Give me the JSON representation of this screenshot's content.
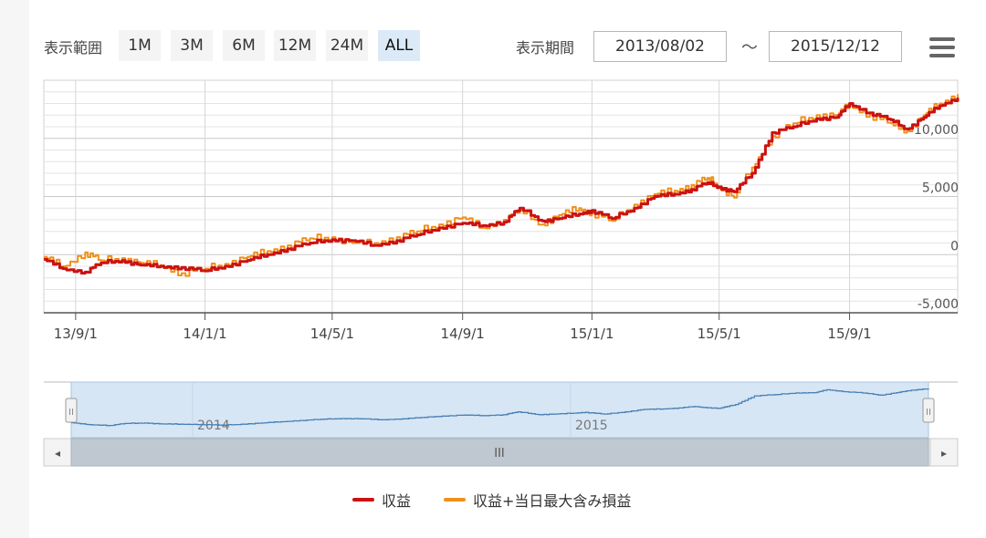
{
  "toolbar": {
    "range_label": "表示範囲",
    "range_buttons": [
      "1M",
      "3M",
      "6M",
      "12M",
      "24M",
      "ALL"
    ],
    "active_range": "ALL",
    "period_label": "表示期間",
    "start_date": "2013/08/02",
    "tilde": "～",
    "end_date": "2015/12/12",
    "menu_icon": "hamburger-menu-icon"
  },
  "navigator": {
    "year_labels": [
      "2014",
      "2015"
    ],
    "scroll_grip": "III",
    "left_arrow": "◂",
    "right_arrow": "▸",
    "handle_grip": "II"
  },
  "legend": {
    "items": [
      {
        "label": "収益",
        "color": "#cc1111"
      },
      {
        "label": "収益+当日最大含み損益",
        "color": "#f0901a"
      }
    ]
  },
  "colors": {
    "profit_line": "#cc1111",
    "max_line": "#f0901a",
    "navigator_fill": "#d6e6f5",
    "navigator_line": "#4a80b4"
  },
  "chart_data": {
    "type": "line",
    "x_tick_labels": [
      "13/9/1",
      "14/1/1",
      "14/5/1",
      "14/9/1",
      "15/1/1",
      "15/5/1",
      "15/9/1"
    ],
    "x_tick_dates": [
      "2013-09-01",
      "2014-01-01",
      "2014-05-01",
      "2014-09-01",
      "2015-01-01",
      "2015-05-01",
      "2015-09-01"
    ],
    "x_range": [
      "2013-08-02",
      "2015-12-12"
    ],
    "y_tick_labels": [
      "-5,000",
      "0",
      "5,000",
      "10,000"
    ],
    "y_ticks": [
      -5000,
      0,
      5000,
      10000
    ],
    "ylim": [
      -5000,
      15000
    ],
    "grid": true,
    "legend_position": "bottom-center",
    "series": [
      {
        "name": "収益",
        "x": [
          "2013-08-02",
          "2013-08-20",
          "2013-09-10",
          "2013-09-25",
          "2013-10-15",
          "2013-11-01",
          "2013-11-20",
          "2013-12-10",
          "2014-01-01",
          "2014-01-20",
          "2014-02-10",
          "2014-03-01",
          "2014-03-20",
          "2014-04-10",
          "2014-05-01",
          "2014-05-20",
          "2014-06-10",
          "2014-07-01",
          "2014-07-20",
          "2014-08-10",
          "2014-09-01",
          "2014-09-20",
          "2014-10-10",
          "2014-10-25",
          "2014-11-15",
          "2014-12-01",
          "2014-12-20",
          "2015-01-01",
          "2015-01-20",
          "2015-02-10",
          "2015-03-01",
          "2015-03-20",
          "2015-04-05",
          "2015-04-20",
          "2015-05-01",
          "2015-05-15",
          "2015-06-01",
          "2015-06-20",
          "2015-07-10",
          "2015-08-01",
          "2015-08-20",
          "2015-09-01",
          "2015-09-20",
          "2015-10-10",
          "2015-10-25",
          "2015-11-10",
          "2015-11-25",
          "2015-12-12"
        ],
        "values": [
          -400,
          -1200,
          -1500,
          -700,
          -500,
          -900,
          -1000,
          -1100,
          -1400,
          -1000,
          -500,
          0,
          500,
          1000,
          1300,
          1200,
          800,
          1200,
          1700,
          2300,
          2700,
          2500,
          2800,
          4000,
          2900,
          3100,
          3500,
          3800,
          3100,
          4000,
          5000,
          5200,
          5600,
          6200,
          5800,
          5400,
          7000,
          10500,
          11000,
          11700,
          11800,
          13000,
          12200,
          11600,
          10800,
          11800,
          12800,
          13500
        ]
      },
      {
        "name": "収益+当日最大含み損益",
        "x": [
          "2013-08-02",
          "2013-08-20",
          "2013-09-10",
          "2013-09-25",
          "2013-10-15",
          "2013-11-01",
          "2013-11-20",
          "2013-12-10",
          "2014-01-01",
          "2014-01-20",
          "2014-02-10",
          "2014-03-01",
          "2014-03-20",
          "2014-04-10",
          "2014-05-01",
          "2014-05-20",
          "2014-06-10",
          "2014-07-01",
          "2014-07-20",
          "2014-08-10",
          "2014-09-01",
          "2014-09-20",
          "2014-10-10",
          "2014-10-25",
          "2014-11-15",
          "2014-12-01",
          "2014-12-20",
          "2015-01-01",
          "2015-01-20",
          "2015-02-10",
          "2015-03-01",
          "2015-03-20",
          "2015-04-05",
          "2015-04-20",
          "2015-05-01",
          "2015-05-15",
          "2015-06-01",
          "2015-06-20",
          "2015-07-10",
          "2015-08-01",
          "2015-08-20",
          "2015-09-01",
          "2015-09-20",
          "2015-10-10",
          "2015-10-25",
          "2015-11-10",
          "2015-11-25",
          "2015-12-12"
        ],
        "values": [
          -200,
          -1000,
          200,
          -500,
          -300,
          -700,
          -900,
          -1600,
          -1200,
          -800,
          -200,
          300,
          800,
          1400,
          1500,
          1000,
          1000,
          1500,
          2000,
          2600,
          3200,
          2300,
          3000,
          3800,
          2600,
          3400,
          4000,
          3600,
          2900,
          4300,
          5200,
          5500,
          6000,
          6600,
          5900,
          4900,
          7500,
          10200,
          11300,
          12000,
          12000,
          12900,
          12000,
          11300,
          10600,
          12000,
          13000,
          13800
        ]
      }
    ]
  }
}
